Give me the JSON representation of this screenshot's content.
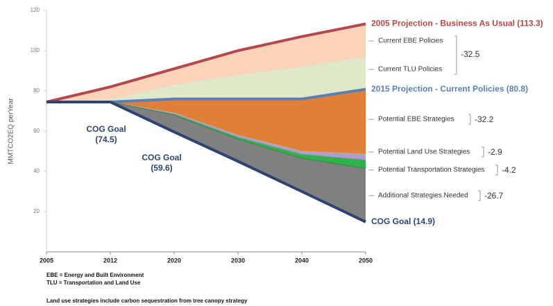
{
  "chart_data": {
    "type": "area",
    "y_label": "MMTCO2EQ perYear",
    "categories": [
      "2005",
      "2012",
      "2020",
      "2030",
      "2040",
      "2050"
    ],
    "ylim": [
      0,
      120
    ],
    "yticks": [
      20,
      40,
      60,
      80,
      100,
      120
    ],
    "series": [
      {
        "name": "2005 Projection - Business As Usual (113.3)",
        "color": "#b5484b",
        "fill": "#fbd3bb",
        "values": [
          74.5,
          82,
          91,
          100,
          107,
          113.3
        ]
      },
      {
        "color": "#f2d7bd",
        "fill": "#dfe9c9",
        "values": [
          74.5,
          76,
          83,
          88,
          92,
          97
        ]
      },
      {
        "name": "2015 Projection - Current Policies (80.8)",
        "color": "#5b7fb5",
        "fill": "#e07f38",
        "values": [
          74.5,
          74.5,
          76,
          76,
          76,
          80.8
        ]
      },
      {
        "color": "#c9a98e",
        "fill": "#ad9fcb",
        "values": [
          null,
          74.5,
          69,
          58,
          50,
          48.6
        ]
      },
      {
        "color": "#8f88b8",
        "fill": "#2db34a",
        "values": [
          null,
          74.5,
          68.5,
          57,
          48.5,
          45.7
        ]
      },
      {
        "color": "#2b8f3c",
        "fill": "#808080",
        "values": [
          null,
          74.5,
          68,
          56,
          46.5,
          41.5
        ]
      },
      {
        "name": "COG Goal (14.9)",
        "color": "#2e4373",
        "values": [
          74.5,
          74.5,
          59.6,
          45,
          30,
          14.9
        ]
      }
    ],
    "goal_labels": [
      [
        "COG Goal",
        "(74.5)"
      ],
      [
        "COG Goal",
        "(59.6)"
      ]
    ],
    "strategies": [
      {
        "labels": [
          "Current EBE Policies",
          "Current TLU Policies"
        ],
        "total": "-32.5"
      },
      {
        "labels": [
          "Potential EBE Strategies"
        ],
        "total": "-32.2"
      },
      {
        "labels": [
          "Potential Land Use Strategies"
        ],
        "total": "-2.9"
      },
      {
        "labels": [
          "Potential Transportation Strategies"
        ],
        "total": "-4.2"
      },
      {
        "labels": [
          "Additional Strategies Needed"
        ],
        "total": "-26.7"
      }
    ],
    "footnotes": [
      "EBE = Energy and Built Environment",
      "TLU = Transportation and Land Use",
      "Land use strategies include carbon sequestration from tree canopy strategy"
    ]
  }
}
